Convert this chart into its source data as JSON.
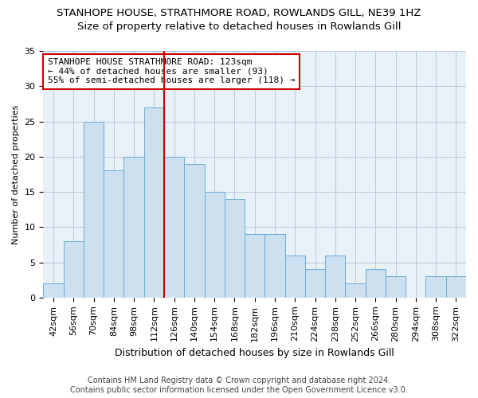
{
  "title1": "STANHOPE HOUSE, STRATHMORE ROAD, ROWLANDS GILL, NE39 1HZ",
  "title2": "Size of property relative to detached houses in Rowlands Gill",
  "xlabel": "Distribution of detached houses by size in Rowlands Gill",
  "ylabel": "Number of detached properties",
  "footer1": "Contains HM Land Registry data © Crown copyright and database right 2024.",
  "footer2": "Contains public sector information licensed under the Open Government Licence v3.0.",
  "categories": [
    "42sqm",
    "56sqm",
    "70sqm",
    "84sqm",
    "98sqm",
    "112sqm",
    "126sqm",
    "140sqm",
    "154sqm",
    "168sqm",
    "182sqm",
    "196sqm",
    "210sqm",
    "224sqm",
    "238sqm",
    "252sqm",
    "266sqm",
    "280sqm",
    "294sqm",
    "308sqm",
    "322sqm"
  ],
  "values": [
    2,
    8,
    25,
    18,
    20,
    27,
    20,
    19,
    15,
    14,
    9,
    9,
    6,
    4,
    6,
    2,
    4,
    3,
    0,
    3,
    3
  ],
  "bar_color": "#cde0f0",
  "bar_edge_color": "#6aaed6",
  "ylim": [
    0,
    35
  ],
  "yticks": [
    0,
    5,
    10,
    15,
    20,
    25,
    30,
    35
  ],
  "vline_index": 6,
  "vline_color": "#cc0000",
  "annotation_title": "STANHOPE HOUSE STRATHMORE ROAD: 123sqm",
  "annotation_line2": "← 44% of detached houses are smaller (93)",
  "annotation_line3": "55% of semi-detached houses are larger (118) →",
  "annotation_box_color": "#ffffff",
  "annotation_box_edge": "#cc0000",
  "background_color": "#e8f0f8",
  "title1_fontsize": 9.5,
  "title2_fontsize": 9.5,
  "xlabel_fontsize": 9,
  "ylabel_fontsize": 8,
  "tick_fontsize": 8,
  "annotation_fontsize": 8,
  "footer_fontsize": 7
}
